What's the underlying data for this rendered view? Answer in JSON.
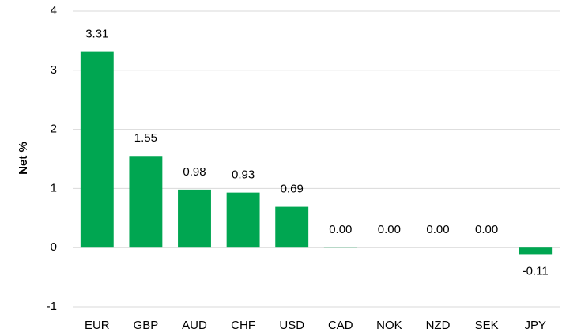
{
  "chart_data": {
    "type": "bar",
    "y_label": "Net %",
    "categories": [
      "EUR",
      "GBP",
      "AUD",
      "CHF",
      "USD",
      "CAD",
      "NOK",
      "NZD",
      "SEK",
      "JPY"
    ],
    "values": [
      3.31,
      1.55,
      0.98,
      0.93,
      0.69,
      0.004,
      0,
      0,
      0,
      -0.11
    ],
    "value_labels": [
      "3.31",
      "1.55",
      "0.98",
      "0.93",
      "0.69",
      "0.00",
      "0.00",
      "0.00",
      "0.00",
      "-0.11"
    ],
    "color": "#00a651",
    "ylim": [
      -1,
      4
    ],
    "yticks": [
      -1,
      0,
      1,
      2,
      3,
      4
    ],
    "grid": true
  }
}
